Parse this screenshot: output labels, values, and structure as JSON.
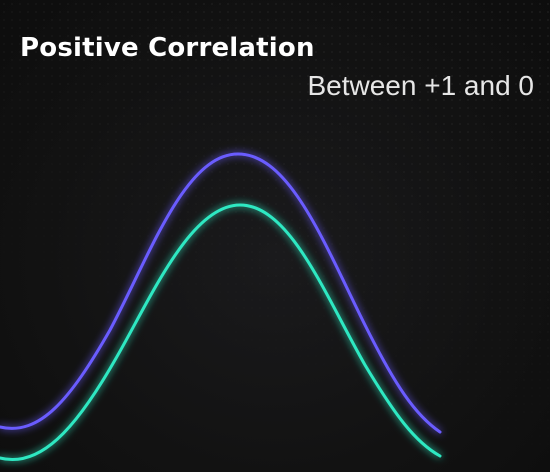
{
  "header": {
    "title": "Positive Correlation",
    "subtitle": "Between +1 and 0"
  },
  "colors": {
    "background": "#141414",
    "upper_curve": "#6a5cff",
    "lower_curve": "#2ee8c2",
    "title_text": "#ffffff",
    "subtitle_text": "#e6e6e6"
  }
}
